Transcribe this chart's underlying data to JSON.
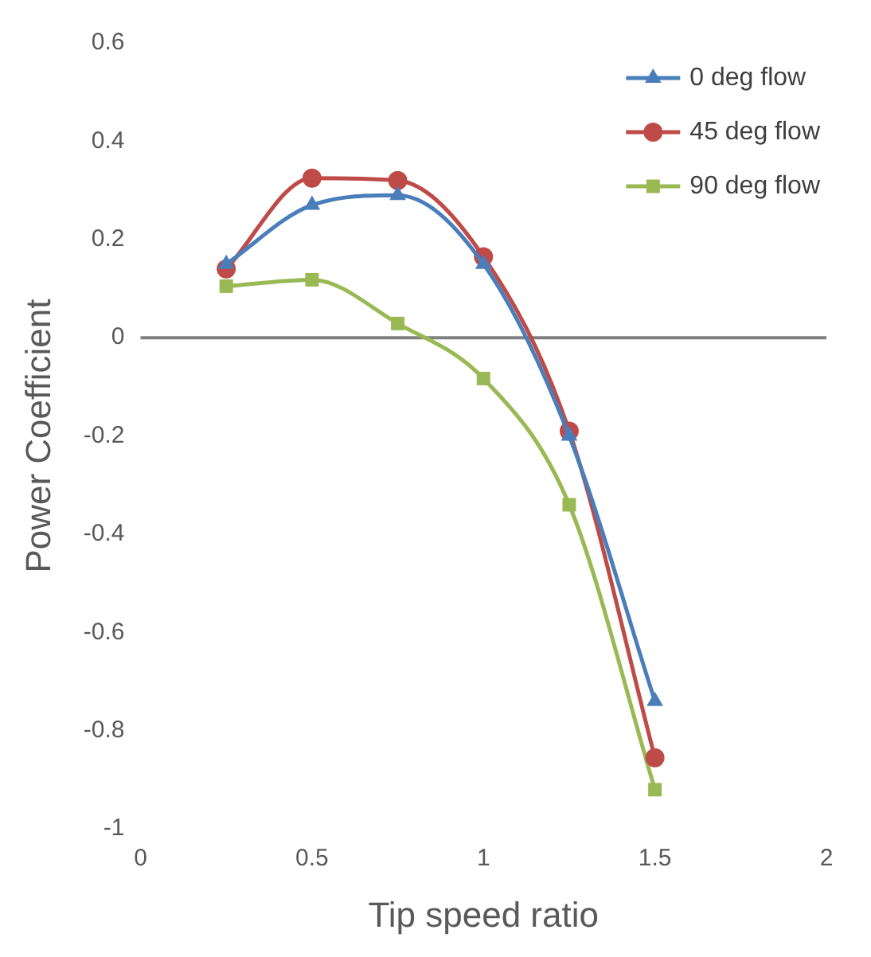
{
  "chart_data": {
    "type": "line",
    "xlabel": "Tip speed ratio",
    "ylabel": "Power Coefficient",
    "x": [
      0.25,
      0.5,
      0.75,
      1,
      1.25,
      1.5
    ],
    "series": [
      {
        "name": "0 deg flow",
        "color": "#4a7ebb",
        "marker": "triangle",
        "values": [
          0.15,
          0.27,
          0.29,
          0.15,
          -0.2,
          -0.74
        ]
      },
      {
        "name": "45 deg flow",
        "color": "#be4b48",
        "marker": "circle",
        "values": [
          0.14,
          0.325,
          0.32,
          0.165,
          -0.19,
          -0.855
        ]
      },
      {
        "name": "90 deg flow",
        "color": "#98b954",
        "marker": "square",
        "values": [
          0.105,
          0.118,
          0.029,
          -0.083,
          -0.34,
          -0.92
        ]
      }
    ],
    "xlim": [
      0,
      2
    ],
    "xticks": [
      0,
      0.5,
      1,
      1.5,
      2
    ],
    "ylim": [
      -1,
      0.6
    ],
    "yticks": [
      -1,
      -0.8,
      -0.6,
      -0.4,
      -0.2,
      0,
      0.2,
      0.4,
      0.6
    ],
    "ref_lines": [
      {
        "axis": "y",
        "value": 0,
        "color": "#808080"
      }
    ],
    "grid": false,
    "legend": "top right",
    "line_style": "solid"
  }
}
